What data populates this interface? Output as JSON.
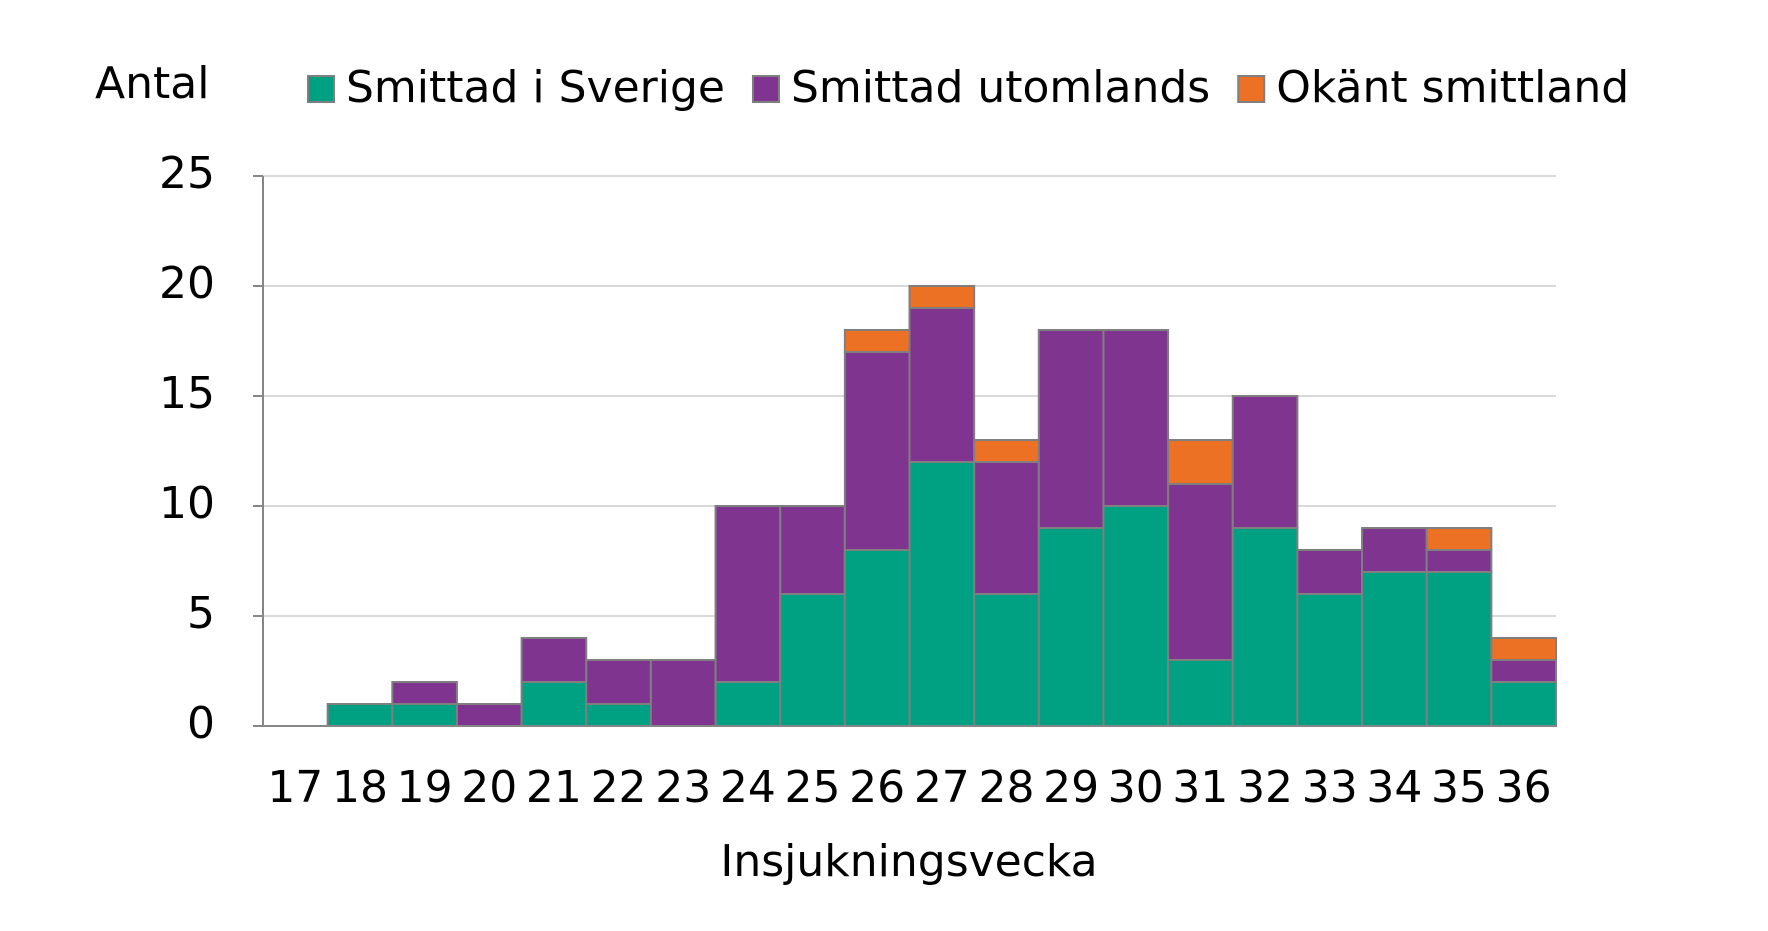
{
  "chart_data": {
    "type": "stacked_bar",
    "y_label": "Antal",
    "x_label": "Insjukningsvecka",
    "categories": [
      "17",
      "18",
      "19",
      "20",
      "21",
      "22",
      "23",
      "24",
      "25",
      "26",
      "27",
      "28",
      "29",
      "30",
      "31",
      "32",
      "33",
      "34",
      "35",
      "36"
    ],
    "series": [
      {
        "name": "Smittad i Sverige",
        "color": "#00a082",
        "values": [
          0,
          1,
          1,
          0,
          2,
          1,
          0,
          2,
          6,
          8,
          12,
          6,
          9,
          10,
          3,
          9,
          6,
          7,
          7,
          2
        ]
      },
      {
        "name": "Smittad utomlands",
        "color": "#7f358f",
        "values": [
          0,
          0,
          1,
          1,
          2,
          2,
          3,
          8,
          4,
          9,
          7,
          6,
          9,
          8,
          8,
          6,
          2,
          2,
          1,
          1
        ]
      },
      {
        "name": "Okänt smittland",
        "color": "#ed7125",
        "values": [
          0,
          0,
          0,
          0,
          0,
          0,
          0,
          0,
          0,
          1,
          1,
          1,
          0,
          0,
          2,
          0,
          0,
          0,
          1,
          1
        ]
      }
    ],
    "ylim": [
      0,
      25
    ],
    "yticks": [
      0,
      5,
      10,
      15,
      20,
      25
    ],
    "grid": true,
    "legend": "top"
  }
}
